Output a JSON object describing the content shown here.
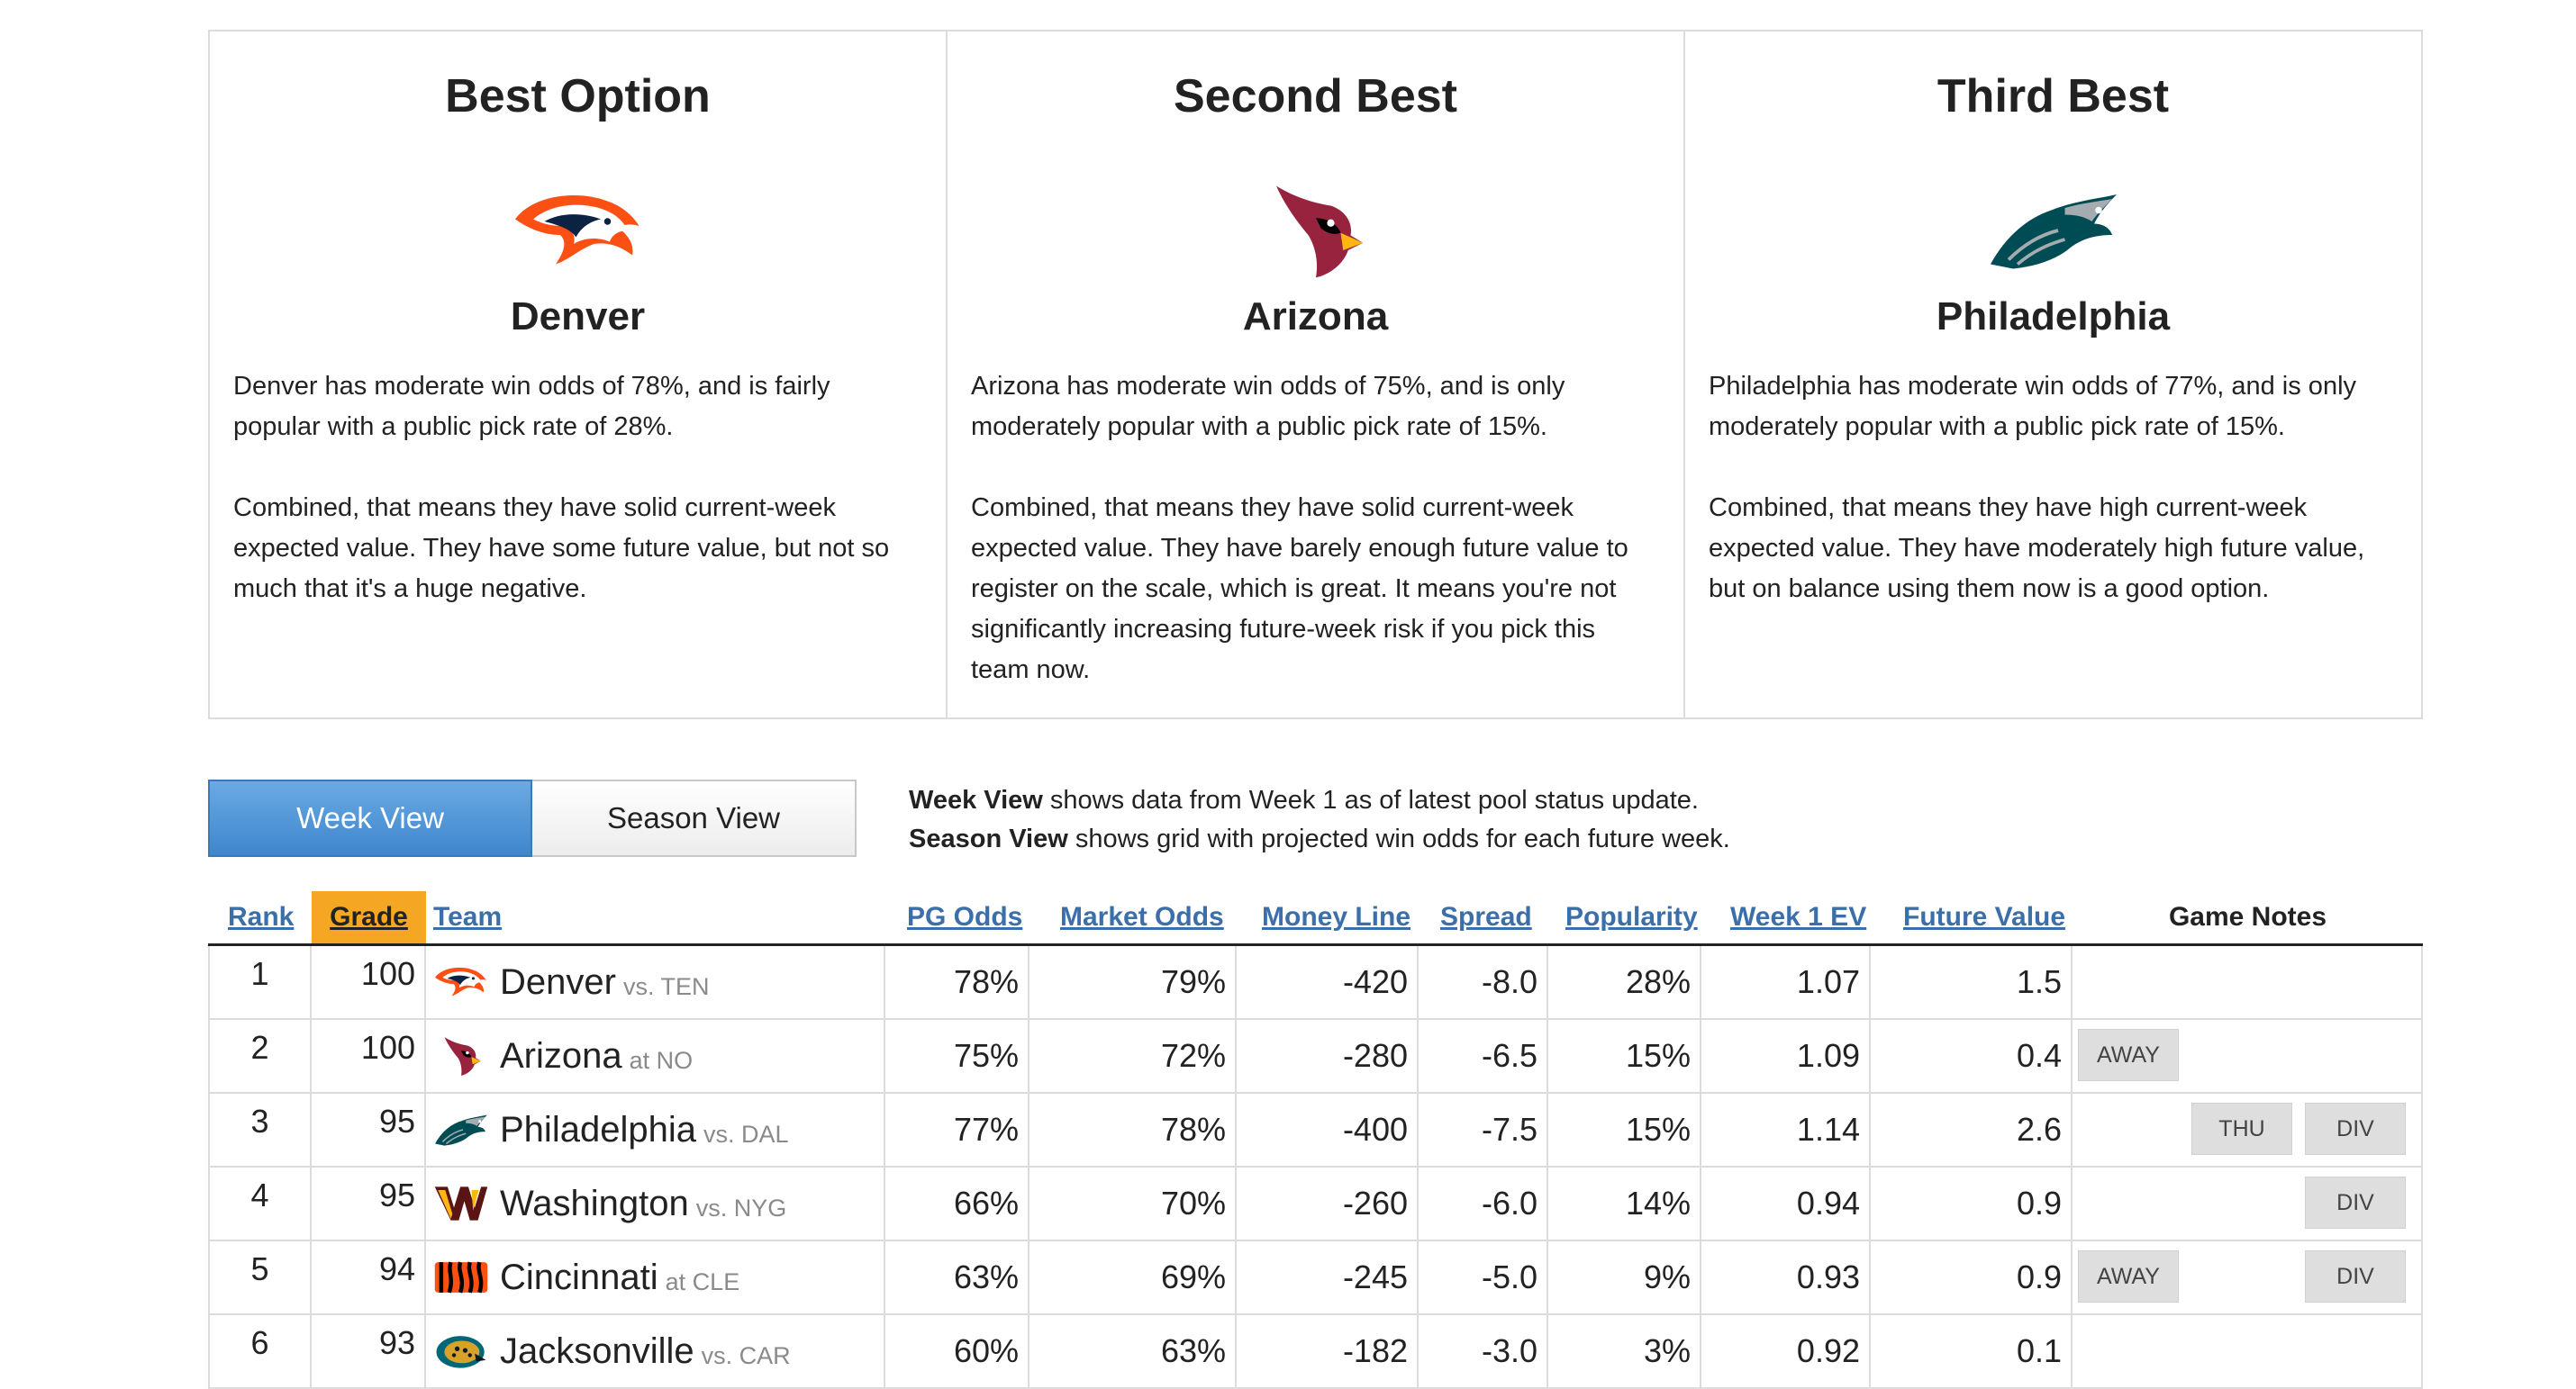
{
  "cards": [
    {
      "heading": "Best Option",
      "team": "Denver",
      "logo": "broncos-logo",
      "para1": "Denver has moderate win odds of 78%, and is fairly popular with a public pick rate of 28%.",
      "para2": "Combined, that means they have solid current-week expected value. They have some future value, but not so much that it's a huge negative."
    },
    {
      "heading": "Second Best",
      "team": "Arizona",
      "logo": "cardinals-logo",
      "para1": "Arizona has moderate win odds of 75%, and is only moderately popular with a public pick rate of 15%.",
      "para2": "Combined, that means they have solid current-week expected value. They have barely enough future value to register on the scale, which is great. It means you're not significantly increasing future-week risk if you pick this team now."
    },
    {
      "heading": "Third Best",
      "team": "Philadelphia",
      "logo": "eagles-logo",
      "para1": "Philadelphia has moderate win odds of 77%, and is only moderately popular with a public pick rate of 15%.",
      "para2": "Combined, that means they have high current-week expected value. They have moderately high future value, but on balance using them now is a good option."
    }
  ],
  "view_toggle": {
    "week_label": "Week View",
    "season_label": "Season View",
    "selected": "week"
  },
  "view_description": {
    "week_term": "Week View",
    "week_text": " shows data from Week 1 as of latest pool status update.",
    "season_term": "Season View",
    "season_text": " shows grid with projected win odds for each future week."
  },
  "table": {
    "headers": {
      "rank": "Rank",
      "grade": "Grade",
      "team": "Team",
      "pg_odds": "PG Odds",
      "market_odds": "Market Odds",
      "money_line": "Money Line",
      "spread": "Spread",
      "popularity": "Popularity",
      "week_ev": "Week 1 EV",
      "future_value": "Future Value",
      "game_notes": "Game Notes"
    },
    "rows": [
      {
        "rank": "1",
        "grade": "100",
        "team": "Denver",
        "opp": "vs. TEN",
        "pg": "78%",
        "mkt": "79%",
        "ml": "-420",
        "spread": "-8.0",
        "pop": "28%",
        "ev": "1.07",
        "fv": "1.5",
        "away": "",
        "thu": "",
        "div": ""
      },
      {
        "rank": "2",
        "grade": "100",
        "team": "Arizona",
        "opp": "at NO",
        "pg": "75%",
        "mkt": "72%",
        "ml": "-280",
        "spread": "-6.5",
        "pop": "15%",
        "ev": "1.09",
        "fv": "0.4",
        "away": "AWAY",
        "thu": "",
        "div": ""
      },
      {
        "rank": "3",
        "grade": "95",
        "team": "Philadelphia",
        "opp": "vs. DAL",
        "pg": "77%",
        "mkt": "78%",
        "ml": "-400",
        "spread": "-7.5",
        "pop": "15%",
        "ev": "1.14",
        "fv": "2.6",
        "away": "",
        "thu": "THU",
        "div": "DIV"
      },
      {
        "rank": "4",
        "grade": "95",
        "team": "Washington",
        "opp": "vs. NYG",
        "pg": "66%",
        "mkt": "70%",
        "ml": "-260",
        "spread": "-6.0",
        "pop": "14%",
        "ev": "0.94",
        "fv": "0.9",
        "away": "",
        "thu": "",
        "div": "DIV"
      },
      {
        "rank": "5",
        "grade": "94",
        "team": "Cincinnati",
        "opp": "at CLE",
        "pg": "63%",
        "mkt": "69%",
        "ml": "-245",
        "spread": "-5.0",
        "pop": "9%",
        "ev": "0.93",
        "fv": "0.9",
        "away": "AWAY",
        "thu": "",
        "div": "DIV"
      },
      {
        "rank": "6",
        "grade": "93",
        "team": "Jacksonville",
        "opp": "vs. CAR",
        "pg": "60%",
        "mkt": "63%",
        "ml": "-182",
        "spread": "-3.0",
        "pop": "3%",
        "ev": "0.92",
        "fv": "0.1",
        "away": "",
        "thu": "",
        "div": ""
      }
    ]
  },
  "colors": {
    "accent_blue": "#4a90d9",
    "grade_highlight": "#f5a623",
    "link": "#3b6fa9"
  }
}
